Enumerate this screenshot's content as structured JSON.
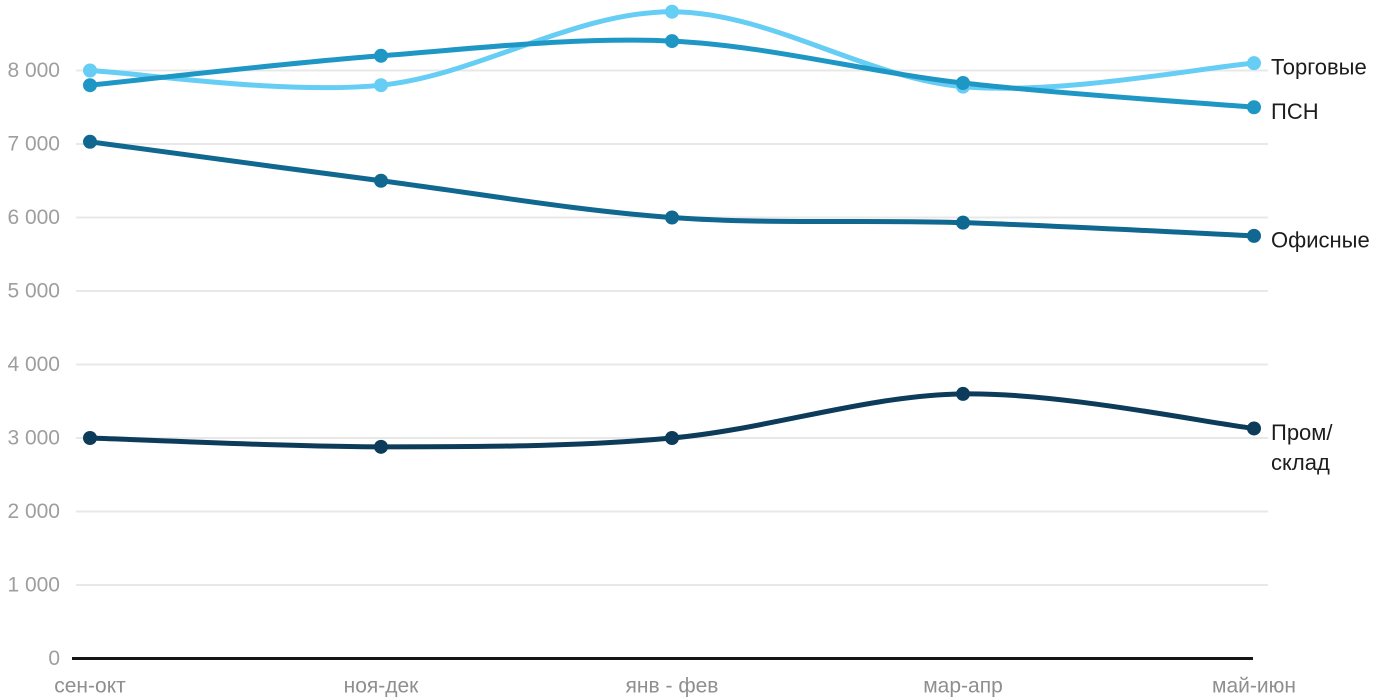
{
  "chart_data": {
    "type": "line",
    "title": "",
    "xlabel": "",
    "ylabel": "",
    "x_categories": [
      "сен-окт",
      "ноя-дек",
      "янв - фев",
      "мар-апр",
      "май-июн"
    ],
    "series": [
      {
        "name": "Торговые",
        "slug": "torgovye",
        "color": "#66CDF4",
        "values": [
          8000,
          7800,
          8800,
          7780,
          8100
        ],
        "label_lines": [
          "Торговые"
        ]
      },
      {
        "name": "ПСН",
        "slug": "psn",
        "color": "#1E97C5",
        "values": [
          7800,
          8200,
          8400,
          7830,
          7500
        ],
        "label_lines": [
          "ПСН"
        ]
      },
      {
        "name": "Офисные",
        "slug": "ofisnye",
        "color": "#10678F",
        "values": [
          7030,
          6500,
          6000,
          5930,
          5750
        ],
        "label_lines": [
          "Офисные"
        ]
      },
      {
        "name": "Пром/склад",
        "slug": "prom-sklad",
        "color": "#0D3C5B",
        "values": [
          3000,
          2880,
          3000,
          3600,
          3130
        ],
        "label_lines": [
          "Пром/",
          "склад"
        ]
      }
    ],
    "y_ticks": [
      0,
      1000,
      2000,
      3000,
      4000,
      5000,
      6000,
      7000,
      8000
    ],
    "y_tick_labels": [
      "0",
      "1 000",
      "2 000",
      "3 000",
      "4 000",
      "5 000",
      "6 000",
      "7 000",
      "8 000"
    ],
    "ylim": [
      0,
      8900
    ],
    "grid": true,
    "legend_position": "right-of-line-end",
    "colors": {
      "grid_line": "#e8e8e8",
      "axis_line": "#161616",
      "y_tick_text": "#9e9e9e",
      "x_tick_text": "#8f8f8f",
      "legend_text": "#1d1d1d",
      "background": "#ffffff"
    }
  }
}
